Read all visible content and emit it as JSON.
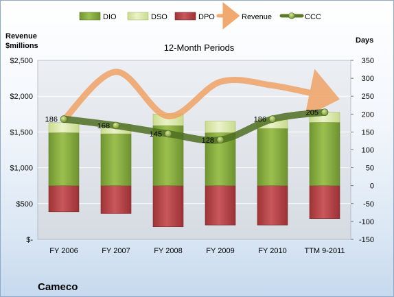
{
  "chart_data": {
    "type": "bar",
    "title": "12-Month Periods",
    "company": "Cameco",
    "left_axis_label_line1": "Revenue",
    "left_axis_label_line2": "$millions",
    "right_axis_label": "Days",
    "categories": [
      "FY 2006",
      "FY 2007",
      "FY 2008",
      "FY 2009",
      "FY 2010",
      "TTM 9-2011"
    ],
    "left_ticks": [
      "$2,500",
      "$2,000",
      "$1,500",
      "$1,000",
      "$500",
      "$-"
    ],
    "right_ticks": [
      "350",
      "300",
      "250",
      "200",
      "150",
      "100",
      "50",
      "0",
      "-50",
      "-100",
      "-150"
    ],
    "left_ylim": [
      0,
      2500
    ],
    "right_ylim": [
      -150,
      350
    ],
    "grid": true,
    "legend_position": "top",
    "series": [
      {
        "name": "DIO",
        "kind": "bar",
        "axis": "right",
        "color": "#7ea33a",
        "values": [
          148,
          145,
          168,
          148,
          160,
          177
        ]
      },
      {
        "name": "DSO",
        "kind": "bar",
        "axis": "right",
        "color": "#d6e6a8",
        "values": [
          28,
          24,
          32,
          32,
          26,
          28
        ]
      },
      {
        "name": "DPO",
        "kind": "bar",
        "axis": "right",
        "color": "#b9454a",
        "values": [
          -73,
          -78,
          -115,
          -110,
          -110,
          -92
        ]
      },
      {
        "name": "Revenue",
        "kind": "line",
        "axis": "left",
        "color": "#f0a060",
        "values": [
          1670,
          2340,
          1720,
          2200,
          2150,
          2000
        ]
      },
      {
        "name": "CCC",
        "kind": "line",
        "axis": "right",
        "color": "#5a7a2a",
        "values": [
          186,
          168,
          145,
          128,
          186,
          205
        ]
      }
    ],
    "ccc_labels": [
      "186",
      "168",
      "145",
      "128",
      "186",
      "205"
    ]
  }
}
